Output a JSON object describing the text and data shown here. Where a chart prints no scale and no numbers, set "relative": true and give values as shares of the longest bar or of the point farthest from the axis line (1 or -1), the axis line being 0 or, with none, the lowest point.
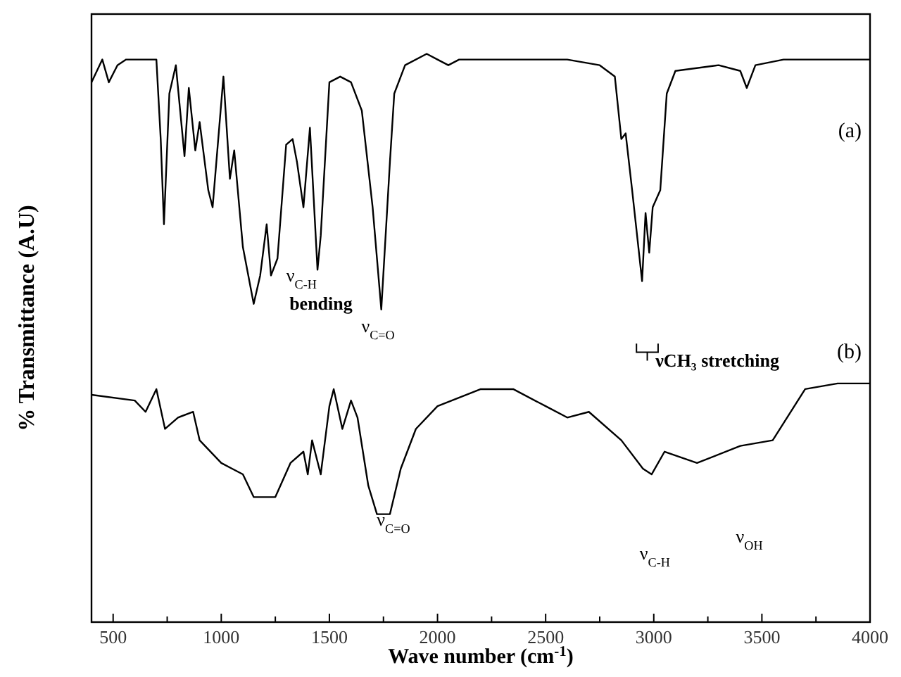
{
  "chart_data": {
    "type": "line",
    "relative": true,
    "xlabel": "Wave number (cm$^{-1}$)",
    "ylabel": "% Transmittance (A.U)",
    "xlim": [
      400,
      4000
    ],
    "xticks": [
      500,
      {
        "value": 750,
        "label": null
      },
      1000,
      {
        "value": 1250,
        "label": null
      },
      1500,
      {
        "value": 1750,
        "label": null
      },
      2000,
      {
        "value": 2250,
        "label": null
      },
      2500,
      {
        "value": 2750,
        "label": null
      },
      3000,
      {
        "value": 3250,
        "label": null
      },
      3500,
      {
        "value": 3750,
        "label": null
      },
      4000
    ],
    "tick_labels": "x",
    "grid": false,
    "marker": "none",
    "line_style": "solid",
    "series": [
      {
        "name": "(a)",
        "color": "#000000",
        "x": [
          400,
          450,
          480,
          520,
          560,
          650,
          700,
          720,
          735,
          760,
          790,
          810,
          830,
          850,
          880,
          900,
          940,
          960,
          1010,
          1040,
          1060,
          1100,
          1150,
          1180,
          1210,
          1230,
          1260,
          1300,
          1330,
          1350,
          1380,
          1410,
          1445,
          1460,
          1500,
          1550,
          1600,
          1650,
          1700,
          1740,
          1780,
          1800,
          1850,
          1950,
          2000,
          2050,
          2100,
          2200,
          2400,
          2600,
          2750,
          2820,
          2850,
          2870,
          2900,
          2946,
          2962,
          2979,
          2995,
          3030,
          3060,
          3100,
          3300,
          3400,
          3430,
          3470,
          3600,
          3800,
          4000
        ],
        "values": [
          0.95,
          0.99,
          0.95,
          0.98,
          0.99,
          0.99,
          0.99,
          0.85,
          0.7,
          0.93,
          0.98,
          0.9,
          0.82,
          0.94,
          0.83,
          0.88,
          0.76,
          0.73,
          0.96,
          0.78,
          0.83,
          0.66,
          0.56,
          0.61,
          0.7,
          0.61,
          0.64,
          0.84,
          0.85,
          0.81,
          0.73,
          0.87,
          0.62,
          0.68,
          0.95,
          0.96,
          0.95,
          0.9,
          0.73,
          0.55,
          0.81,
          0.93,
          0.98,
          1.0,
          0.99,
          0.98,
          0.99,
          0.99,
          0.99,
          0.99,
          0.98,
          0.96,
          0.85,
          0.86,
          0.76,
          0.6,
          0.72,
          0.65,
          0.73,
          0.76,
          0.93,
          0.97,
          0.98,
          0.97,
          0.94,
          0.98,
          0.99,
          0.99,
          0.99
        ]
      },
      {
        "name": "(b)",
        "color": "#000000",
        "x": [
          400,
          600,
          650,
          700,
          740,
          800,
          870,
          900,
          1000,
          1050,
          1100,
          1150,
          1250,
          1320,
          1380,
          1400,
          1420,
          1460,
          1500,
          1520,
          1560,
          1600,
          1630,
          1680,
          1720,
          1780,
          1830,
          1900,
          2000,
          2200,
          2350,
          2500,
          2600,
          2700,
          2850,
          2950,
          2990,
          3050,
          3200,
          3400,
          3550,
          3650,
          3700,
          3850,
          4000
        ],
        "values": [
          0.4,
          0.39,
          0.37,
          0.41,
          0.34,
          0.36,
          0.37,
          0.32,
          0.28,
          0.27,
          0.26,
          0.22,
          0.22,
          0.28,
          0.3,
          0.26,
          0.32,
          0.26,
          0.38,
          0.41,
          0.34,
          0.39,
          0.36,
          0.24,
          0.19,
          0.19,
          0.27,
          0.34,
          0.38,
          0.41,
          0.41,
          0.38,
          0.36,
          0.37,
          0.32,
          0.27,
          0.26,
          0.3,
          0.28,
          0.31,
          0.32,
          0.38,
          0.41,
          0.42,
          0.42
        ]
      }
    ],
    "annotations": [
      "ν$_{C-H}$",
      "bending",
      "ν$_{C=O}$",
      "νCH₃ stretching",
      "ν$_{C=O}$",
      "ν$_{C-H}$",
      "ν$_{OH}$"
    ]
  }
}
